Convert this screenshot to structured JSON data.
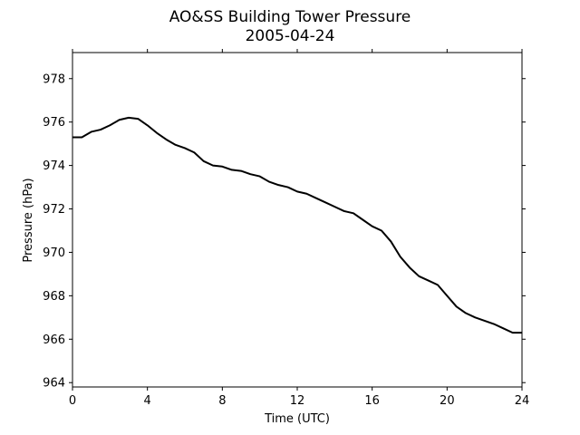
{
  "chart_data": {
    "type": "line",
    "title": "AO&SS Building Tower Pressure",
    "subtitle": "2005-04-24",
    "xlabel": "Time (UTC)",
    "ylabel": "Pressure (hPa)",
    "xlim": [
      0,
      24
    ],
    "ylim": [
      963.8,
      979.2
    ],
    "xticks": [
      0,
      4,
      8,
      12,
      16,
      20,
      24
    ],
    "yticks": [
      964,
      966,
      968,
      970,
      972,
      974,
      976,
      978
    ],
    "grid": false,
    "legend": "none",
    "series": [
      {
        "color": "#000000",
        "x": [
          0,
          0.5,
          1.0,
          1.5,
          2.0,
          2.5,
          3.0,
          3.5,
          4.0,
          4.5,
          5.0,
          5.5,
          6.0,
          6.5,
          7.0,
          7.5,
          8.0,
          8.5,
          9.0,
          9.5,
          10.0,
          10.5,
          11.0,
          11.5,
          12.0,
          12.5,
          13.0,
          13.5,
          14.0,
          14.5,
          15.0,
          15.5,
          16.0,
          16.5,
          17.0,
          17.5,
          18.0,
          18.5,
          19.0,
          19.5,
          20.0,
          20.5,
          21.0,
          21.5,
          22.0,
          22.5,
          23.0,
          23.5,
          24.0
        ],
        "y": [
          975.3,
          975.3,
          975.55,
          975.65,
          975.85,
          976.1,
          976.2,
          976.15,
          975.85,
          975.5,
          975.2,
          974.95,
          974.8,
          974.6,
          974.2,
          974.0,
          973.95,
          973.8,
          973.75,
          973.6,
          973.5,
          973.25,
          973.1,
          973.0,
          972.8,
          972.7,
          972.5,
          972.3,
          972.1,
          971.9,
          971.8,
          971.5,
          971.2,
          971.0,
          970.5,
          969.8,
          969.3,
          968.9,
          968.7,
          968.5,
          968.0,
          967.5,
          967.2,
          967.0,
          966.85,
          966.7,
          966.5,
          966.3,
          966.3
        ]
      }
    ]
  }
}
